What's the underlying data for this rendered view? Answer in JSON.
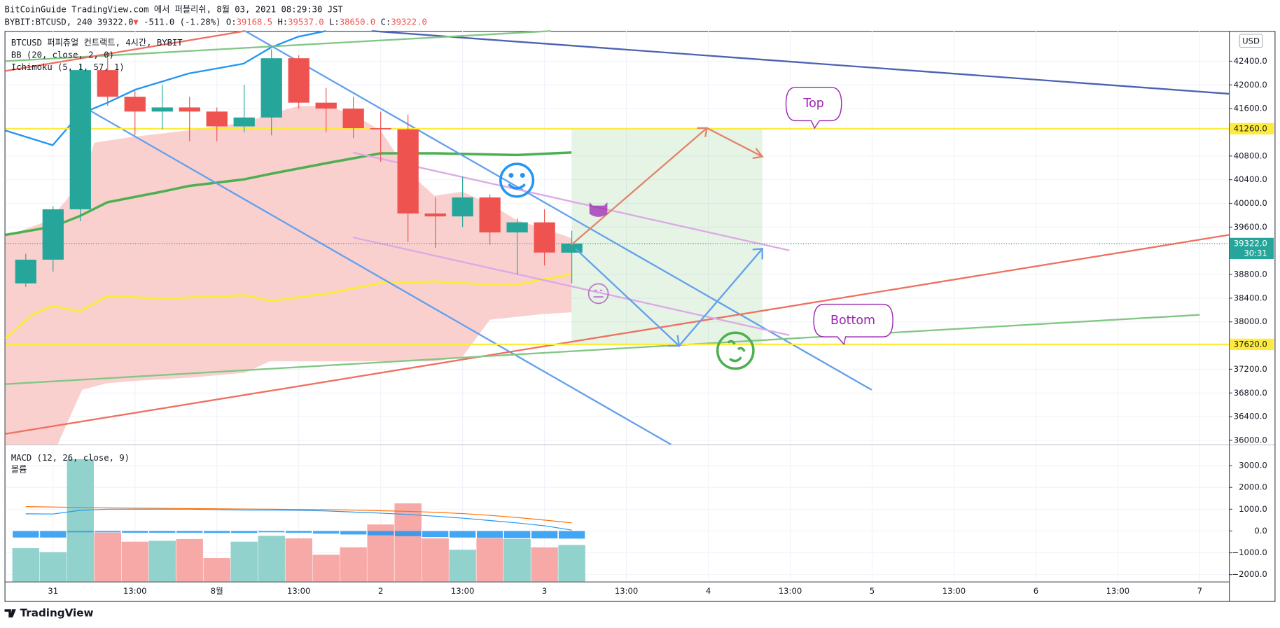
{
  "header": {
    "publisher": "BitCoinGuide TradingView.com 에서 퍼블리쉬, 8월 03, 2021 08:29:30 JST",
    "symbol": "BYBIT:BTCUSD, 240",
    "price": "39322.0",
    "arrow": "▼",
    "change": "-511.0 (-1.28%)",
    "ohlc": [
      {
        "label": "O:",
        "value": "39168.5"
      },
      {
        "label": "H:",
        "value": "39537.0"
      },
      {
        "label": "L:",
        "value": "38650.0"
      },
      {
        "label": "C:",
        "value": "39322.0"
      }
    ]
  },
  "footer": {
    "brand": "TradingView"
  },
  "chart_data": {
    "type": "candlestick",
    "title": "BTCUSD 퍼피츄얼 컨트랙트, 4시간, BYBIT",
    "indicators": [
      "BB (20, close, 2, 0)",
      "Ichimoku (5, 1, 57, 1)"
    ],
    "currency": "USD",
    "annotations": [
      "Top",
      "Bottom"
    ],
    "up_color": "#26a69a",
    "down_color": "#ef5350",
    "categories": [
      null,
      "31",
      null,
      null,
      "13:00",
      null,
      null,
      "8월",
      null,
      null,
      "13:00",
      null,
      null,
      "2",
      null,
      null,
      "13:00",
      null,
      null,
      "3",
      null,
      null,
      "13:00",
      null,
      null,
      "4",
      null,
      null,
      "13:00",
      null,
      null,
      "5",
      null,
      null,
      "13:00",
      null,
      null,
      "6",
      null,
      null,
      "13:00",
      null,
      null,
      "7"
    ],
    "open": [
      38650,
      39050,
      39900,
      42250,
      41800,
      41550,
      41620,
      41550,
      41300,
      41450,
      42450,
      41700,
      41600,
      41270,
      41250,
      39830,
      39780,
      40100,
      39510,
      39680,
      39168.5,
      null,
      null,
      null,
      null,
      null,
      null,
      null,
      null,
      null,
      null,
      null,
      null,
      null,
      null,
      null,
      null,
      null,
      null,
      null,
      null,
      null,
      null,
      null
    ],
    "high": [
      39150,
      39950,
      42350,
      42450,
      41900,
      42000,
      41800,
      41620,
      42000,
      42600,
      42500,
      41950,
      41800,
      41550,
      41500,
      40100,
      40450,
      40150,
      39750,
      39900,
      39537,
      null,
      null,
      null,
      null,
      null,
      null,
      null,
      null,
      null,
      null,
      null,
      null,
      null,
      null,
      null,
      null,
      null,
      null,
      null,
      null,
      null,
      null,
      null
    ],
    "low": [
      38590,
      38850,
      39700,
      41650,
      41150,
      41250,
      41050,
      41050,
      41200,
      41150,
      41600,
      41200,
      41100,
      40700,
      39350,
      39250,
      39600,
      39300,
      38800,
      38950,
      38650,
      null,
      null,
      null,
      null,
      null,
      null,
      null,
      null,
      null,
      null,
      null,
      null,
      null,
      null,
      null,
      null,
      null,
      null,
      null,
      null,
      null,
      null,
      null
    ],
    "close": [
      39050,
      39900,
      42250,
      41800,
      41550,
      41620,
      41550,
      41300,
      41450,
      42450,
      41700,
      41600,
      41270,
      41250,
      39830,
      39780,
      40100,
      39510,
      39680,
      39170,
      39322,
      null,
      null,
      null,
      null,
      null,
      null,
      null,
      null,
      null,
      null,
      null,
      null,
      null,
      null,
      null,
      null,
      null,
      null,
      null,
      null,
      null,
      null,
      null
    ],
    "ylim": [
      35930,
      42910
    ],
    "yticks": [
      {
        "value": 42400,
        "label": "42400.0"
      },
      {
        "value": 42000,
        "label": "42000.0"
      },
      {
        "value": 41600,
        "label": "41600.0"
      },
      {
        "value": 40800,
        "label": "40800.0"
      },
      {
        "value": 40400,
        "label": "40400.0"
      },
      {
        "value": 40000,
        "label": "40000.0"
      },
      {
        "value": 39600,
        "label": "39600.0"
      },
      {
        "value": 38800,
        "label": "38800.0"
      },
      {
        "value": 38400,
        "label": "38400.0"
      },
      {
        "value": 38000,
        "label": "38000.0"
      },
      {
        "value": 37200,
        "label": "37200.0"
      },
      {
        "value": 36800,
        "label": "36800.0"
      },
      {
        "value": 36400,
        "label": "36400.0"
      },
      {
        "value": 36000,
        "label": "36000.0"
      }
    ],
    "levels": [
      {
        "value": 41260,
        "label": "41260.0"
      },
      {
        "value": 37620,
        "label": "37620.0"
      }
    ],
    "level_color": "#ffeb3b",
    "last_price": {
      "value": 39322,
      "label": "39322.0",
      "countdown": "30:31"
    },
    "grid": true,
    "macd_pane": {
      "title": "MACD (12, 26, close, 9)",
      "volume_label": "볼륨",
      "ylim": [
        -2320,
        3860
      ],
      "yticks": [
        {
          "value": 3000,
          "label": "3000.0"
        },
        {
          "value": 2000,
          "label": "2000.0"
        },
        {
          "value": 1000,
          "label": "1000.0"
        },
        {
          "value": 0,
          "label": "0.0"
        },
        {
          "value": -1000,
          "label": "−1000.0"
        },
        {
          "value": -2000,
          "label": "−2000.0"
        }
      ],
      "volume_up_color": "#92d2cc",
      "volume_down_color": "#f7a9a7",
      "histogram_color": "#2196f3",
      "macd_color": "#2196f3",
      "signal_color": "#ff6d00",
      "volume": [
        -790,
        -970,
        3300,
        -75,
        -490,
        -450,
        -370,
        -1240,
        -490,
        -220,
        -340,
        -1090,
        -750,
        300,
        1270,
        -340,
        -860,
        -340,
        -370,
        -750,
        -640,
        null,
        null,
        null,
        null,
        null,
        null,
        null,
        null,
        null,
        null,
        null,
        null,
        null,
        null,
        null,
        null,
        null,
        null,
        null,
        null,
        null,
        null,
        null
      ],
      "histogram": [
        -300,
        -300,
        -60,
        -60,
        -80,
        -80,
        -80,
        -90,
        -90,
        -60,
        -80,
        -120,
        -160,
        -200,
        -240,
        -280,
        -300,
        -320,
        -330,
        -340,
        -350,
        null,
        null,
        null,
        null,
        null,
        null,
        null,
        null,
        null,
        null,
        null,
        null,
        null,
        null,
        null,
        null,
        null,
        null,
        null,
        null,
        null,
        null,
        null
      ],
      "macd_line": [
        790,
        780,
        950,
        1000,
        1000,
        1000,
        1000,
        980,
        960,
        960,
        950,
        920,
        870,
        820,
        760,
        680,
        590,
        480,
        370,
        240,
        40,
        null,
        null,
        null,
        null,
        null,
        null,
        null,
        null,
        null,
        null,
        null,
        null,
        null,
        null,
        null,
        null,
        null,
        null,
        null,
        null,
        null,
        null,
        null
      ],
      "signal_line": [
        1120,
        1100,
        1080,
        1060,
        1050,
        1040,
        1030,
        1020,
        1010,
        1000,
        990,
        980,
        960,
        930,
        900,
        860,
        800,
        720,
        620,
        500,
        375,
        null,
        null,
        null,
        null,
        null,
        null,
        null,
        null,
        null,
        null,
        null,
        null,
        null,
        null,
        null,
        null,
        null,
        null,
        null,
        null,
        null,
        null,
        null
      ]
    }
  }
}
